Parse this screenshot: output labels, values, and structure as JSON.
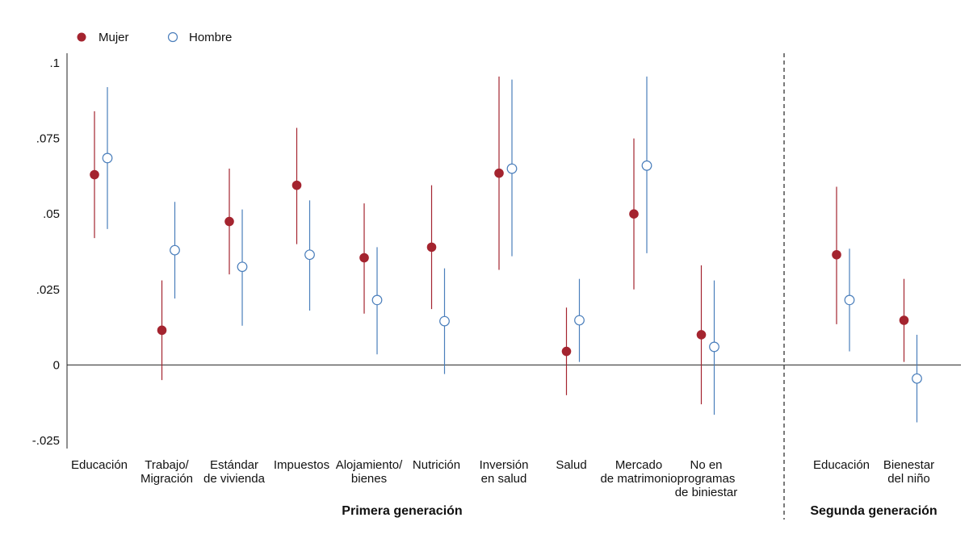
{
  "chart_data": {
    "type": "scatter",
    "subtype": "point-estimates with confidence intervals",
    "y_ticks": [
      ".1",
      ".075",
      ".05",
      ".025",
      "0",
      "-.025"
    ],
    "y_tick_values": [
      0.1,
      0.075,
      0.05,
      0.025,
      0,
      -0.025
    ],
    "ylim": [
      -0.028,
      0.103
    ],
    "zero_line": true,
    "legend_position": "top-left",
    "colors": {
      "Mujer": "#a4242f",
      "Hombre": "#4a7ebb"
    },
    "series": [
      {
        "name": "Mujer",
        "marker": "filled-circle"
      },
      {
        "name": "Hombre",
        "marker": "hollow-circle"
      }
    ],
    "groups": [
      {
        "label": "Primera generación",
        "categories": [
          {
            "label": [
              "Educación"
            ],
            "mujer": {
              "est": 0.063,
              "lo": 0.042,
              "hi": 0.084
            },
            "hombre": {
              "est": 0.0685,
              "lo": 0.045,
              "hi": 0.092
            }
          },
          {
            "label": [
              "Trabajo/",
              "Migración"
            ],
            "mujer": {
              "est": 0.0115,
              "lo": -0.005,
              "hi": 0.028
            },
            "hombre": {
              "est": 0.038,
              "lo": 0.022,
              "hi": 0.054
            }
          },
          {
            "label": [
              "Estándar",
              "de vivienda"
            ],
            "mujer": {
              "est": 0.0475,
              "lo": 0.03,
              "hi": 0.065
            },
            "hombre": {
              "est": 0.0325,
              "lo": 0.013,
              "hi": 0.0515
            }
          },
          {
            "label": [
              "Impuestos"
            ],
            "mujer": {
              "est": 0.0595,
              "lo": 0.04,
              "hi": 0.0785
            },
            "hombre": {
              "est": 0.0365,
              "lo": 0.018,
              "hi": 0.0545
            }
          },
          {
            "label": [
              "Alojamiento/",
              "bienes"
            ],
            "mujer": {
              "est": 0.0355,
              "lo": 0.017,
              "hi": 0.0535
            },
            "hombre": {
              "est": 0.0215,
              "lo": 0.0035,
              "hi": 0.039
            }
          },
          {
            "label": [
              "Nutrición"
            ],
            "mujer": {
              "est": 0.039,
              "lo": 0.0185,
              "hi": 0.0595
            },
            "hombre": {
              "est": 0.0145,
              "lo": -0.003,
              "hi": 0.032
            }
          },
          {
            "label": [
              "Inversión",
              "en salud"
            ],
            "mujer": {
              "est": 0.0635,
              "lo": 0.0315,
              "hi": 0.0955
            },
            "hombre": {
              "est": 0.065,
              "lo": 0.036,
              "hi": 0.0945
            }
          },
          {
            "label": [
              "Salud"
            ],
            "mujer": {
              "est": 0.0045,
              "lo": -0.01,
              "hi": 0.019
            },
            "hombre": {
              "est": 0.0148,
              "lo": 0.001,
              "hi": 0.0285
            }
          },
          {
            "label": [
              "Mercado",
              "de matrimonio"
            ],
            "mujer": {
              "est": 0.05,
              "lo": 0.025,
              "hi": 0.075
            },
            "hombre": {
              "est": 0.066,
              "lo": 0.037,
              "hi": 0.0955
            }
          },
          {
            "label": [
              "No en",
              "programas",
              "de biniestar"
            ],
            "mujer": {
              "est": 0.01,
              "lo": -0.013,
              "hi": 0.033
            },
            "hombre": {
              "est": 0.006,
              "lo": -0.0165,
              "hi": 0.028
            }
          }
        ]
      },
      {
        "label": "Segunda generación",
        "categories": [
          {
            "label": [
              "Educación"
            ],
            "mujer": {
              "est": 0.0365,
              "lo": 0.0135,
              "hi": 0.059
            },
            "hombre": {
              "est": 0.0215,
              "lo": 0.0045,
              "hi": 0.0385
            }
          },
          {
            "label": [
              "Bienestar",
              "del niño"
            ],
            "mujer": {
              "est": 0.0148,
              "lo": 0.001,
              "hi": 0.0285
            },
            "hombre": {
              "est": -0.0045,
              "lo": -0.019,
              "hi": 0.01
            }
          }
        ]
      }
    ]
  }
}
